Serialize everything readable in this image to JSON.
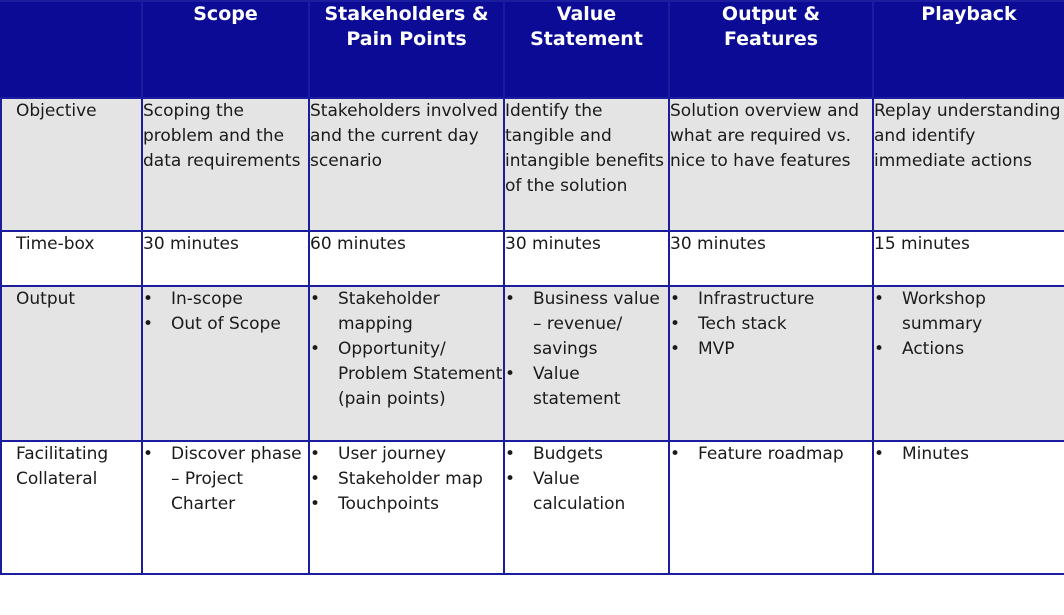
{
  "header": {
    "corner": "",
    "columns": [
      "Scope",
      "Stakeholders &\nPain Points",
      "Value\nStatement",
      "Output &\nFeatures",
      "Playback"
    ]
  },
  "rows": {
    "objective": {
      "label": "Objective",
      "cells": [
        "Scoping the problem and the data requirements",
        "Stakeholders involved and the current day scenario",
        "Identify the tangible and intangible benefits of the solution",
        "Solution overview and what are required vs. nice to have features",
        "Replay understanding and identify immediate actions"
      ]
    },
    "timebox": {
      "label": "Time-box",
      "cells": [
        "30 minutes",
        "60 minutes",
        "30 minutes",
        "30 minutes",
        "15  minutes"
      ]
    },
    "output": {
      "label": "Output",
      "cells": [
        [
          "In-scope",
          "Out of Scope"
        ],
        [
          "Stakeholder mapping",
          "Opportunity/ Problem Statement (pain points)"
        ],
        [
          "Business value – revenue/ savings",
          "Value statement"
        ],
        [
          "Infrastructure",
          "Tech stack",
          "MVP"
        ],
        [
          "Workshop summary",
          "Actions"
        ]
      ]
    },
    "collateral": {
      "label": "Facilitating Collateral",
      "cells": [
        [
          "Discover phase – Project Charter"
        ],
        [
          "User journey",
          "Stakeholder map",
          "Touchpoints"
        ],
        [
          "Budgets",
          "Value calculation"
        ],
        [
          "Feature roadmap"
        ],
        [
          "Minutes"
        ]
      ]
    }
  }
}
